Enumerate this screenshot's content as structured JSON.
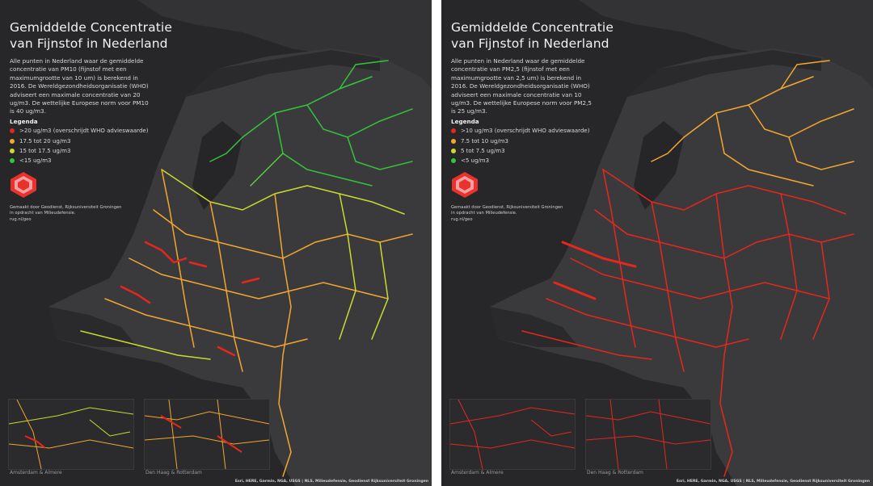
{
  "panels": [
    {
      "id": "pm10",
      "title_line1": "Gemiddelde Concentratie",
      "title_line2": "van Fijnstof in Nederland",
      "description": "Alle punten in Nederland waar de gemiddelde concentratie van PM10 (fijnstof met een maximumgrootte van 10 um) is berekend in 2016. De Wereldgezondheidsorganisatie (WHO) adviseert een maximale concentratie van 20 ug/m3. De wettelijke Europese norm voor PM10 is 40 ug/m3.",
      "legend_title": "Legenda",
      "legend": [
        {
          "label": ">20 ug/m3 (overschrijdt WHO advieswaarde)",
          "color": "#e8261c"
        },
        {
          "label": "17.5 tot 20 ug/m3",
          "color": "#f2a72e"
        },
        {
          "label": "15 tot 17.5 ug/m3",
          "color": "#c9dc2c"
        },
        {
          "label": "<15 ug/m3",
          "color": "#33c43a"
        }
      ],
      "credit_line1": "Gemaakt door Geodienst, Rijksuniversiteit Groningen",
      "credit_line2": "in opdracht van Milieudefensie.",
      "credit_line3": "rug.nl/geo",
      "inset_left_label": "Amsterdam & Almere",
      "inset_right_label": "Den Haag & Rotterdam",
      "attribution": "Esri, HERE, Garmin, NGA, USGS | NLS, Milieudefensie, Geodienst Rijksuniversiteit Groningen"
    },
    {
      "id": "pm25",
      "title_line1": "Gemiddelde Concentratie",
      "title_line2": "van Fijnstof in Nederland",
      "description": "Alle punten in Nederland waar de gemiddelde concentratie van PM2,5 (fijnstof met een maximumgrootte van 2,5 um) is berekend in 2016. De Wereldgezondheidsorganisatie (WHO) adviseert een maximale concentratie van 10 ug/m3. De wettelijke Europese norm voor PM2,5 is 25 ug/m3.",
      "legend_title": "Legenda",
      "legend": [
        {
          "label": ">10 ug/m3 (overschrijdt WHO advieswaarde)",
          "color": "#e8261c"
        },
        {
          "label": "7.5 tot 10 ug/m3",
          "color": "#f2a72e"
        },
        {
          "label": "5 tot 7.5 ug/m3",
          "color": "#c9dc2c"
        },
        {
          "label": "<5 ug/m3",
          "color": "#33c43a"
        }
      ],
      "credit_line1": "Gemaakt door Geodienst, Rijksuniversiteit Groningen",
      "credit_line2": "in opdracht van Milieudefensie.",
      "credit_line3": "rug.nl/geo",
      "inset_left_label": "Amsterdam & Almere",
      "inset_right_label": "Den Haag & Rotterdam",
      "attribution": "Esri, HERE, Garmin, NGA, USGS | NLS, Milieudefensie, Geodienst Rijksuniversiteit Groningen"
    }
  ],
  "colors": {
    "background": "#272729",
    "land": "#3b3b3e",
    "water": "#222224",
    "red": "#e8261c",
    "orange": "#f2a72e",
    "yellow": "#c9dc2c",
    "green": "#33c43a"
  }
}
